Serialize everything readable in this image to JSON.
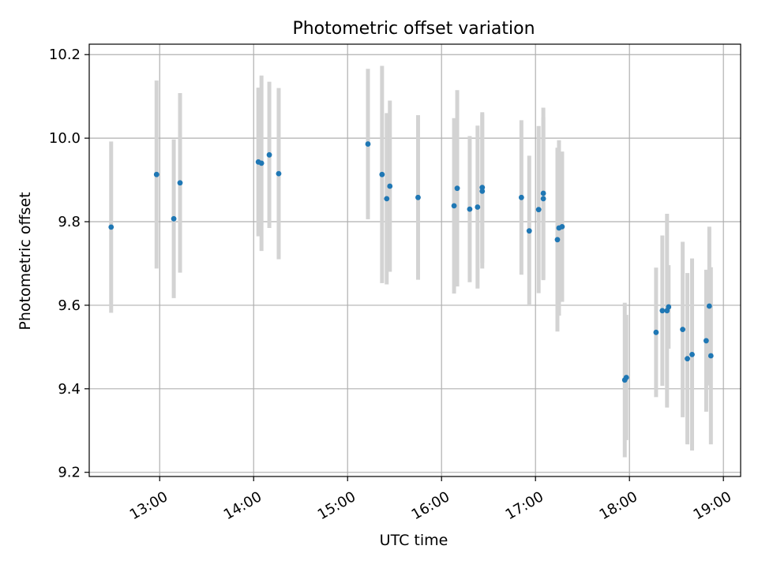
{
  "chart_data": {
    "type": "scatter",
    "title": "Photometric offset variation",
    "xlabel": "UTC time",
    "ylabel": "Photometric offset",
    "x_is_time": true,
    "xlim": [
      "12:15",
      "19:11"
    ],
    "ylim": [
      9.19,
      10.225
    ],
    "grid": true,
    "xticks": [
      "13:00",
      "14:00",
      "15:00",
      "16:00",
      "17:00",
      "18:00",
      "19:00"
    ],
    "yticks": [
      "9.2",
      "9.4",
      "9.6",
      "9.8",
      "10.0",
      "10.2"
    ],
    "colors": {
      "point": "#1f77b4",
      "errorbar": "#d3d3d3",
      "grid": "#b0b0b0"
    },
    "series": [
      {
        "points": [
          {
            "x": "12:29",
            "y": 9.787,
            "err": 0.205
          },
          {
            "x": "12:58",
            "y": 9.913,
            "err": 0.225
          },
          {
            "x": "13:09",
            "y": 9.807,
            "err": 0.19
          },
          {
            "x": "13:13",
            "y": 9.893,
            "err": 0.215
          },
          {
            "x": "14:03",
            "y": 9.943,
            "err": 0.178
          },
          {
            "x": "14:05",
            "y": 9.94,
            "err": 0.21
          },
          {
            "x": "14:10",
            "y": 9.96,
            "err": 0.175
          },
          {
            "x": "14:16",
            "y": 9.915,
            "err": 0.205
          },
          {
            "x": "15:13",
            "y": 9.986,
            "err": 0.18
          },
          {
            "x": "15:22",
            "y": 9.913,
            "err": 0.26
          },
          {
            "x": "15:25",
            "y": 9.855,
            "err": 0.205
          },
          {
            "x": "15:27",
            "y": 9.885,
            "err": 0.205
          },
          {
            "x": "15:45",
            "y": 9.858,
            "err": 0.197
          },
          {
            "x": "16:08",
            "y": 9.838,
            "err": 0.21
          },
          {
            "x": "16:10",
            "y": 9.88,
            "err": 0.235
          },
          {
            "x": "16:18",
            "y": 9.83,
            "err": 0.175
          },
          {
            "x": "16:23",
            "y": 9.835,
            "err": 0.195
          },
          {
            "x": "16:26",
            "y": 9.882,
            "err": 0.18
          },
          {
            "x": "16:26",
            "y": 9.873,
            "err": 0.185
          },
          {
            "x": "16:51",
            "y": 9.858,
            "err": 0.185
          },
          {
            "x": "16:56",
            "y": 9.778,
            "err": 0.18
          },
          {
            "x": "17:02",
            "y": 9.829,
            "err": 0.2
          },
          {
            "x": "17:05",
            "y": 9.868,
            "err": 0.205
          },
          {
            "x": "17:05",
            "y": 9.855,
            "err": 0.195
          },
          {
            "x": "17:14",
            "y": 9.757,
            "err": 0.22
          },
          {
            "x": "17:15",
            "y": 9.785,
            "err": 0.21
          },
          {
            "x": "17:17",
            "y": 9.788,
            "err": 0.18
          },
          {
            "x": "17:57",
            "y": 9.421,
            "err": 0.185
          },
          {
            "x": "17:58",
            "y": 9.427,
            "err": 0.15
          },
          {
            "x": "18:17",
            "y": 9.535,
            "err": 0.155
          },
          {
            "x": "18:21",
            "y": 9.587,
            "err": 0.18
          },
          {
            "x": "18:24",
            "y": 9.587,
            "err": 0.232
          },
          {
            "x": "18:25",
            "y": 9.596,
            "err": 0.1
          },
          {
            "x": "18:34",
            "y": 9.542,
            "err": 0.21
          },
          {
            "x": "18:37",
            "y": 9.472,
            "err": 0.205
          },
          {
            "x": "18:40",
            "y": 9.482,
            "err": 0.23
          },
          {
            "x": "18:49",
            "y": 9.515,
            "err": 0.17
          },
          {
            "x": "18:51",
            "y": 9.598,
            "err": 0.19
          },
          {
            "x": "18:52",
            "y": 9.479,
            "err": 0.212
          }
        ]
      }
    ]
  }
}
